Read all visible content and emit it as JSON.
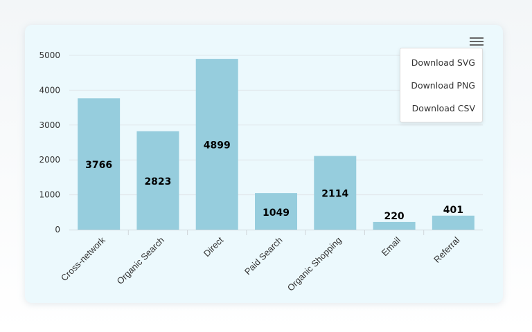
{
  "chart_data": {
    "type": "bar",
    "title": "",
    "xlabel": "",
    "ylabel": "",
    "categories": [
      "Cross-network",
      "Organic Search",
      "Direct",
      "Paid Search",
      "Organic Shopping",
      "Email",
      "Referral"
    ],
    "values": [
      3766,
      2823,
      4899,
      1049,
      2114,
      220,
      401
    ],
    "ylim": [
      0,
      5000
    ],
    "yticks": [
      0,
      1000,
      2000,
      3000,
      4000,
      5000
    ],
    "grid": true,
    "data_labels": true,
    "bar_color": "#96cddd",
    "grid_color": "#e0e6ea",
    "label_color": "#000000"
  },
  "export_menu": {
    "icon": "hamburger-menu-icon",
    "items": [
      "Download SVG",
      "Download PNG",
      "Download CSV"
    ]
  }
}
